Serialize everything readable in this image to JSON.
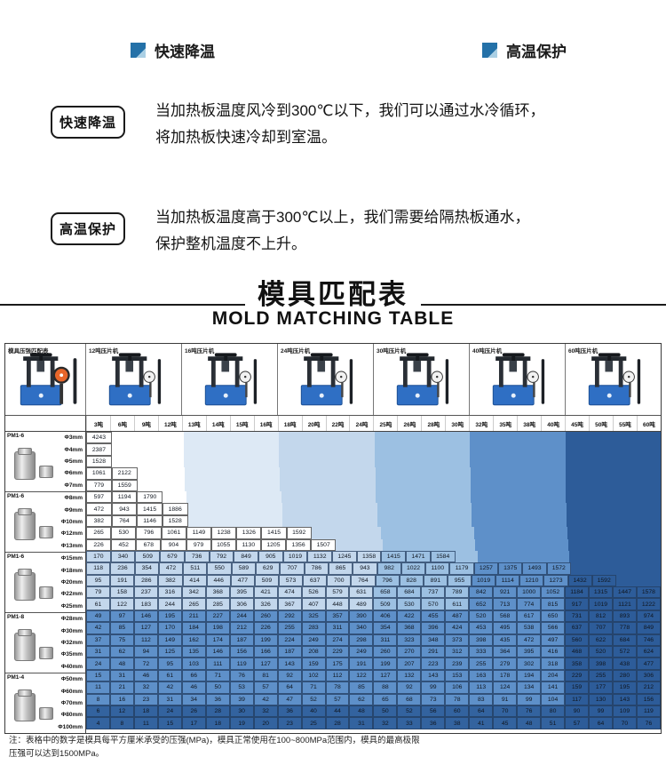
{
  "features": [
    {
      "label": "快速降温"
    },
    {
      "label": "高温保护"
    }
  ],
  "sections": [
    {
      "tag": "快速降温",
      "text": "当加热板温度风冷到300℃以下，我们可以通过水冷循环，\n将加热板快速冷却到室温。"
    },
    {
      "tag": "高温保护",
      "text": "当加热板温度高于300℃以上，我们需要给隔热板通水，\n保护整机温度不上升。"
    }
  ],
  "title": {
    "zh": "模具匹配表",
    "en": "MOLD MATCHING TABLE"
  },
  "colors": {
    "bullet_blue": "#2471a8",
    "machine_blue": "#2f6fc4",
    "gauge_orange": "#e8662a",
    "shades": [
      "#ffffff",
      "#dde9f5",
      "#c3d7ec",
      "#9cc0e2",
      "#5e90c9",
      "#33639f",
      "#2d5c99"
    ]
  },
  "table": {
    "corner_label": "模具压强匹配表",
    "machines": [
      {
        "name": "12吨压片机",
        "cols": 4,
        "shade": 0
      },
      {
        "name": "16吨压片机",
        "cols": 4,
        "shade": 1
      },
      {
        "name": "24吨压片机",
        "cols": 4,
        "shade": 2
      },
      {
        "name": "30吨压片机",
        "cols": 4,
        "shade": 3
      },
      {
        "name": "40吨压片机",
        "cols": 4,
        "shade": 4
      },
      {
        "name": "60吨压片机",
        "cols": 4,
        "shade": 6
      }
    ],
    "ton_labels": [
      "3吨",
      "6吨",
      "9吨",
      "12吨",
      "13吨",
      "14吨",
      "15吨",
      "16吨",
      "18吨",
      "20吨",
      "22吨",
      "24吨",
      "25吨",
      "26吨",
      "28吨",
      "30吨",
      "32吨",
      "35吨",
      "38吨",
      "40吨",
      "45吨",
      "50吨",
      "55吨",
      "60吨"
    ],
    "groups": [
      {
        "label": "PM1-6",
        "rows": [
          {
            "dia": "Φ3mm",
            "shade": 0,
            "values": [
              4243
            ]
          },
          {
            "dia": "Φ4mm",
            "shade": 0,
            "values": [
              2387
            ]
          },
          {
            "dia": "Φ5mm",
            "shade": 0,
            "values": [
              1528
            ]
          },
          {
            "dia": "Φ6mm",
            "shade": 0,
            "values": [
              1061,
              2122
            ]
          },
          {
            "dia": "Φ7mm",
            "shade": 0,
            "values": [
              779,
              1559
            ]
          }
        ]
      },
      {
        "label": "PM1-6",
        "rows": [
          {
            "dia": "Φ8mm",
            "shade": 0,
            "values": [
              597,
              1194,
              1790
            ]
          },
          {
            "dia": "Φ9mm",
            "shade": 0,
            "values": [
              472,
              943,
              1415,
              1886
            ]
          },
          {
            "dia": "Φ10mm",
            "shade": 0,
            "values": [
              382,
              764,
              1146,
              1528
            ]
          },
          {
            "dia": "Φ12mm",
            "shade": 0,
            "values": [
              265,
              530,
              796,
              1061,
              1149,
              1238,
              1326,
              1415,
              1592
            ]
          },
          {
            "dia": "Φ13mm",
            "shade": 0,
            "values": [
              226,
              452,
              678,
              904,
              979,
              1055,
              1130,
              1205,
              1356,
              1507
            ]
          }
        ]
      },
      {
        "label": "PM1-6",
        "rows": [
          {
            "dia": "Φ15mm",
            "shade": 2,
            "values": [
              170,
              340,
              509,
              679,
              736,
              792,
              849,
              905,
              1019,
              1132,
              1245,
              1358,
              1415,
              1471,
              1584
            ]
          },
          {
            "dia": "Φ18mm",
            "shade": 2,
            "values": [
              118,
              236,
              354,
              472,
              511,
              550,
              589,
              629,
              707,
              786,
              865,
              943,
              982,
              1022,
              1100,
              1179,
              1257,
              1375,
              1493,
              1572
            ]
          },
          {
            "dia": "Φ20mm",
            "shade": 2,
            "values": [
              95,
              191,
              286,
              382,
              414,
              446,
              477,
              509,
              573,
              637,
              700,
              764,
              796,
              828,
              891,
              955,
              1019,
              1114,
              1210,
              1273,
              1432,
              1592
            ]
          },
          {
            "dia": "Φ22mm",
            "shade": 2,
            "values": [
              79,
              158,
              237,
              316,
              342,
              368,
              395,
              421,
              474,
              526,
              579,
              631,
              658,
              684,
              737,
              789,
              842,
              921,
              1000,
              1052,
              1184,
              1315,
              1447,
              1578
            ]
          },
          {
            "dia": "Φ25mm",
            "shade": 2,
            "values": [
              61,
              122,
              183,
              244,
              265,
              285,
              306,
              326,
              367,
              407,
              448,
              489,
              509,
              530,
              570,
              611,
              652,
              713,
              774,
              815,
              917,
              1019,
              1121,
              1222
            ]
          }
        ]
      },
      {
        "label": "PM1-8",
        "rows": [
          {
            "dia": "Φ28mm",
            "shade": 4,
            "values": [
              49,
              97,
              146,
              195,
              211,
              227,
              244,
              260,
              292,
              325,
              357,
              390,
              406,
              422,
              455,
              487,
              520,
              568,
              617,
              650,
              731,
              812,
              893,
              974
            ]
          },
          {
            "dia": "Φ30mm",
            "shade": 4,
            "values": [
              42,
              85,
              127,
              170,
              184,
              198,
              212,
              226,
              255,
              283,
              311,
              340,
              354,
              368,
              396,
              424,
              453,
              495,
              538,
              566,
              637,
              707,
              778,
              849
            ]
          },
          {
            "dia": "Φ32mm",
            "shade": 4,
            "values": [
              37,
              75,
              112,
              149,
              162,
              174,
              187,
              199,
              224,
              249,
              274,
              298,
              311,
              323,
              348,
              373,
              398,
              435,
              472,
              497,
              560,
              622,
              684,
              746
            ]
          },
          {
            "dia": "Φ35mm",
            "shade": 4,
            "values": [
              31,
              62,
              94,
              125,
              135,
              146,
              156,
              166,
              187,
              208,
              229,
              249,
              260,
              270,
              291,
              312,
              333,
              364,
              395,
              416,
              468,
              520,
              572,
              624
            ]
          },
          {
            "dia": "Φ40mm",
            "shade": 4,
            "values": [
              24,
              48,
              72,
              95,
              103,
              111,
              119,
              127,
              143,
              159,
              175,
              191,
              199,
              207,
              223,
              239,
              255,
              279,
              302,
              318,
              358,
              398,
              438,
              477
            ]
          }
        ]
      },
      {
        "label": "PM1-4",
        "rows": [
          {
            "dia": "Φ50mm",
            "shade": 4,
            "values": [
              15,
              31,
              46,
              61,
              66,
              71,
              76,
              81,
              92,
              102,
              112,
              122,
              127,
              132,
              143,
              153,
              163,
              178,
              194,
              204,
              229,
              255,
              280,
              306
            ]
          },
          {
            "dia": "Φ60mm",
            "shade": 4,
            "values": [
              11,
              21,
              32,
              42,
              46,
              50,
              53,
              57,
              64,
              71,
              78,
              85,
              88,
              92,
              99,
              106,
              113,
              124,
              134,
              141,
              159,
              177,
              195,
              212
            ]
          },
          {
            "dia": "Φ70mm",
            "shade": 4,
            "values": [
              8,
              16,
              23,
              31,
              34,
              36,
              39,
              42,
              47,
              52,
              57,
              62,
              65,
              68,
              73,
              78,
              83,
              91,
              99,
              104,
              117,
              130,
              143,
              156
            ]
          },
          {
            "dia": "Φ80mm",
            "shade": 5,
            "values": [
              6,
              12,
              18,
              24,
              26,
              28,
              30,
              32,
              36,
              40,
              44,
              48,
              50,
              52,
              56,
              60,
              64,
              70,
              76,
              80,
              90,
              99,
              109,
              119
            ]
          },
          {
            "dia": "Φ100mm",
            "shade": 5,
            "values": [
              4,
              8,
              11,
              15,
              17,
              18,
              19,
              20,
              23,
              25,
              28,
              31,
              32,
              33,
              36,
              38,
              41,
              45,
              48,
              51,
              57,
              64,
              70,
              76
            ]
          }
        ]
      }
    ],
    "note": "注：表格中的数字是模具每平方厘米承受的压强(MPa)，模具正常使用在100~800MPa范围内，模具的最高极限\n压强可以达到1500MPa。"
  }
}
